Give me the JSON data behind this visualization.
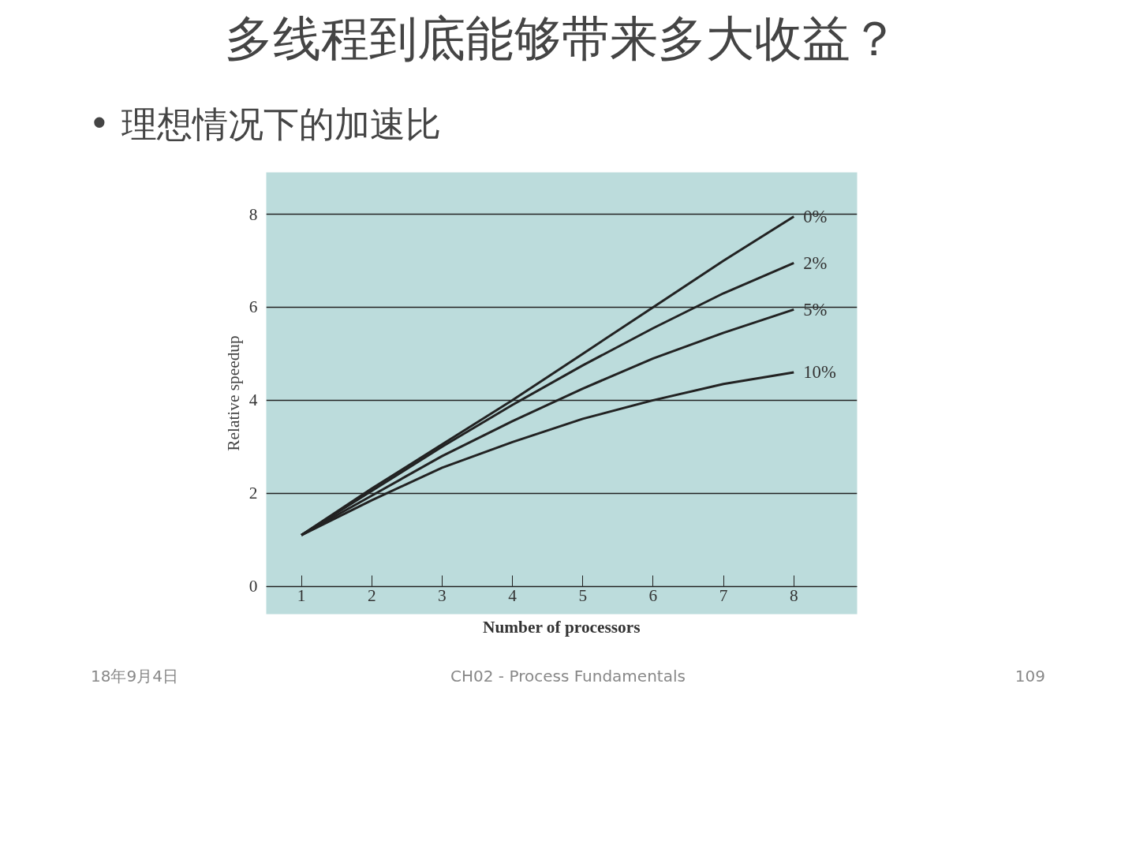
{
  "chart_data": {
    "type": "line",
    "title": "多线程到底能够带来多大收益？",
    "subtitle": "• 理想情况下的加速比",
    "xlabel": "Number of processors",
    "ylabel": "Relative speedup",
    "x": [
      1,
      2,
      3,
      4,
      5,
      6,
      7,
      8
    ],
    "series": [
      {
        "name": "0%",
        "color": "#222222",
        "values": [
          1.1,
          2.1,
          3.05,
          4.0,
          5.0,
          6.0,
          7.0,
          7.95
        ]
      },
      {
        "name": "2%",
        "color": "#222222",
        "values": [
          1.1,
          2.05,
          3.0,
          3.9,
          4.75,
          5.55,
          6.3,
          6.95
        ]
      },
      {
        "name": "5%",
        "color": "#222222",
        "values": [
          1.1,
          1.95,
          2.8,
          3.55,
          4.25,
          4.9,
          5.45,
          5.95
        ]
      },
      {
        "name": "10%",
        "color": "#222222",
        "values": [
          1.1,
          1.85,
          2.55,
          3.1,
          3.6,
          4.0,
          4.35,
          4.6
        ]
      }
    ],
    "xlim": [
      0.5,
      8.9
    ],
    "ylim": [
      -0.6,
      8.9
    ],
    "xticks": [
      1,
      2,
      3,
      4,
      5,
      6,
      7,
      8
    ],
    "yticks": [
      0,
      2,
      4,
      6,
      8
    ],
    "grid": "y",
    "legend": false,
    "marker": "none",
    "line_style": "solid",
    "annotations": [
      "18年9月4日",
      "CH02 - Process Fundamentals",
      "109"
    ]
  }
}
